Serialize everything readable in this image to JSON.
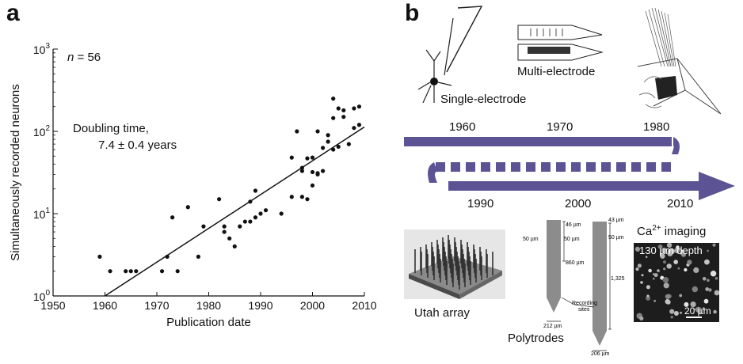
{
  "panel_a": {
    "letter": "a",
    "n_label": "n = 56",
    "doubling_line1": "Doubling time,",
    "doubling_line2": "7.4 ± 0.4 years"
  },
  "chart_data": {
    "type": "scatter",
    "xlabel": "Publication date",
    "ylabel": "Simultaneously recorded neurons",
    "xlim": [
      1950,
      2010
    ],
    "ylim": [
      1,
      1000
    ],
    "yscale": "log",
    "grid": false,
    "x_ticks": [
      "1950",
      "1960",
      "1970",
      "1980",
      "1990",
      "2000",
      "2010"
    ],
    "y_tick_labels": [
      {
        "base": "10",
        "exp": "0",
        "value": 1
      },
      {
        "base": "10",
        "exp": "1",
        "value": 10
      },
      {
        "base": "10",
        "exp": "2",
        "value": 100
      },
      {
        "base": "10",
        "exp": "3",
        "value": 1000
      }
    ],
    "points": [
      [
        1959,
        3
      ],
      [
        1961,
        2
      ],
      [
        1964,
        2
      ],
      [
        1965,
        2
      ],
      [
        1966,
        2
      ],
      [
        1971,
        2
      ],
      [
        1972,
        3
      ],
      [
        1973,
        9
      ],
      [
        1974,
        2
      ],
      [
        1976,
        12
      ],
      [
        1978,
        3
      ],
      [
        1979,
        7
      ],
      [
        1982,
        15
      ],
      [
        1983,
        6
      ],
      [
        1983,
        7
      ],
      [
        1984,
        5
      ],
      [
        1985,
        4
      ],
      [
        1986,
        7
      ],
      [
        1987,
        8
      ],
      [
        1988,
        8
      ],
      [
        1988,
        14
      ],
      [
        1989,
        9
      ],
      [
        1989,
        19
      ],
      [
        1990,
        10
      ],
      [
        1991,
        11
      ],
      [
        1994,
        10
      ],
      [
        1996,
        16
      ],
      [
        1996,
        48
      ],
      [
        1997,
        100
      ],
      [
        1998,
        16
      ],
      [
        1998,
        33
      ],
      [
        1998,
        36
      ],
      [
        1999,
        15
      ],
      [
        1999,
        47
      ],
      [
        2000,
        22
      ],
      [
        2000,
        32
      ],
      [
        2000,
        48
      ],
      [
        2001,
        30
      ],
      [
        2001,
        31
      ],
      [
        2001,
        100
      ],
      [
        2002,
        33
      ],
      [
        2002,
        63
      ],
      [
        2003,
        75
      ],
      [
        2003,
        90
      ],
      [
        2004,
        250
      ],
      [
        2004,
        145
      ],
      [
        2004,
        60
      ],
      [
        2005,
        65
      ],
      [
        2005,
        190
      ],
      [
        2006,
        180
      ],
      [
        2006,
        150
      ],
      [
        2007,
        70
      ],
      [
        2008,
        110
      ],
      [
        2008,
        190
      ],
      [
        2009,
        200
      ],
      [
        2009,
        120
      ]
    ],
    "fit_line": [
      [
        1960,
        1
      ],
      [
        2010,
        113
      ]
    ]
  },
  "panel_b": {
    "letter": "b",
    "labels": {
      "single_electrode": "Single-electrode",
      "multi_electrode": "Multi-electrode",
      "utah_array": "Utah array",
      "polytrodes": "Polytrodes",
      "ca_imaging_base": "Ca",
      "ca_imaging_sup": "2+",
      "ca_imaging_rest": " imaging",
      "depth": "130 µm depth",
      "scale": "20 µm"
    },
    "timeline": {
      "top_years": [
        "1960",
        "1970",
        "1980"
      ],
      "bottom_years": [
        "1990",
        "2000",
        "2010"
      ],
      "color": "#5b5394"
    },
    "polytrode_dims": {
      "d1": "50 µm",
      "d2": "46 µm",
      "d3": "50 µm",
      "d4": "860 µm",
      "d5": "212 µm",
      "d6": "43 µm",
      "d7": "50 µm",
      "d8": "1,325 µm",
      "d9": "206 µm",
      "recording": "Recording",
      "sites": "sites"
    }
  }
}
